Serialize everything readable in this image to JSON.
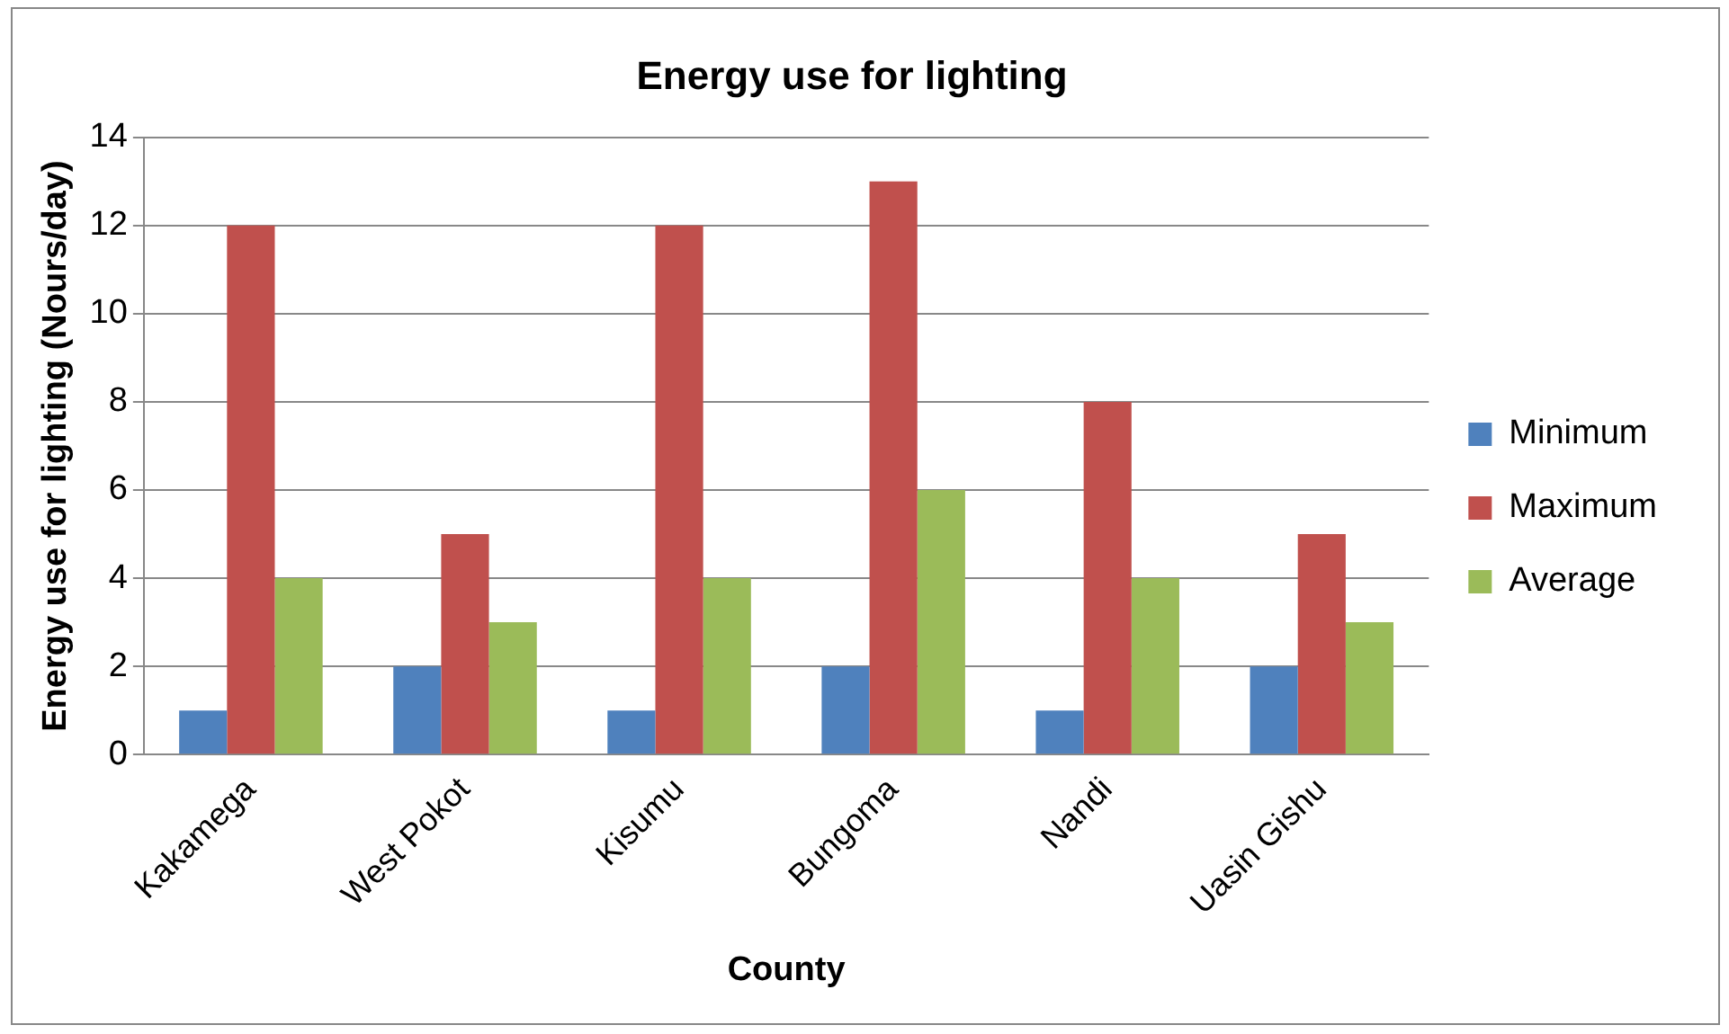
{
  "chart_data": {
    "type": "bar",
    "title": "Energy use for lighting",
    "xlabel": "County",
    "ylabel": "Energy use for lighting (Nours/day)",
    "categories": [
      "Kakamega",
      "West Pokot",
      "Kisumu",
      "Bungoma",
      "Nandi",
      "Uasin Gishu"
    ],
    "series": [
      {
        "name": "Minimum",
        "color": "#4f81bd",
        "values": [
          1,
          2,
          1,
          2,
          1,
          2
        ]
      },
      {
        "name": "Maximum",
        "color": "#c0504d",
        "values": [
          12,
          5,
          12,
          13,
          8,
          5
        ]
      },
      {
        "name": "Average",
        "color": "#9bbb59",
        "values": [
          4,
          3,
          4,
          6,
          4,
          3
        ]
      }
    ],
    "ylim": [
      0,
      14
    ],
    "yticks": [
      0,
      2,
      4,
      6,
      8,
      10,
      12,
      14
    ],
    "grid": "y",
    "legend": "right"
  }
}
